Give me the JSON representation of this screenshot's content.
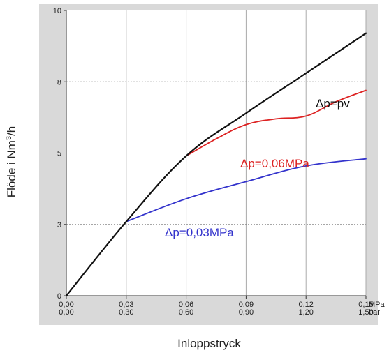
{
  "chart_data": {
    "type": "line",
    "title": "",
    "xlabel": "Inloppstryck",
    "ylabel_main": "Flöde i Nm",
    "ylabel_sup": "3",
    "ylabel_tail": "/h",
    "x_unit_primary": "MPa",
    "x_unit_secondary": "bar",
    "x_ticks_primary": [
      "0,00",
      "0,03",
      "0,06",
      "0,09",
      "0,12",
      "0,15"
    ],
    "x_ticks_secondary": [
      "0,00",
      "0,30",
      "0,60",
      "0,90",
      "1,20",
      "1,50"
    ],
    "y_ticks": [
      "0",
      "3",
      "5",
      "8",
      "10"
    ],
    "xlim": [
      0,
      0.15
    ],
    "ylim": [
      0,
      10
    ],
    "grid": true,
    "background": "#ffffff",
    "frame_color": "#d9d9d9",
    "series": [
      {
        "name": "Δp=pv",
        "color": "#111111",
        "x": [
          0,
          0.03,
          0.06,
          0.09,
          0.12,
          0.15
        ],
        "y": [
          0,
          2.6,
          4.9,
          6.4,
          7.8,
          9.2
        ]
      },
      {
        "name": "Δp=0,06MPa",
        "color": "#dd2222",
        "x": [
          0.06,
          0.075,
          0.09,
          0.105,
          0.12,
          0.135,
          0.15
        ],
        "y": [
          4.9,
          5.5,
          6.0,
          6.2,
          6.3,
          6.8,
          7.2
        ]
      },
      {
        "name": "Δp=0,03MPa",
        "color": "#3333cc",
        "x": [
          0.03,
          0.06,
          0.09,
          0.12,
          0.15
        ],
        "y": [
          2.6,
          3.4,
          4.0,
          4.55,
          4.8
        ]
      }
    ]
  }
}
